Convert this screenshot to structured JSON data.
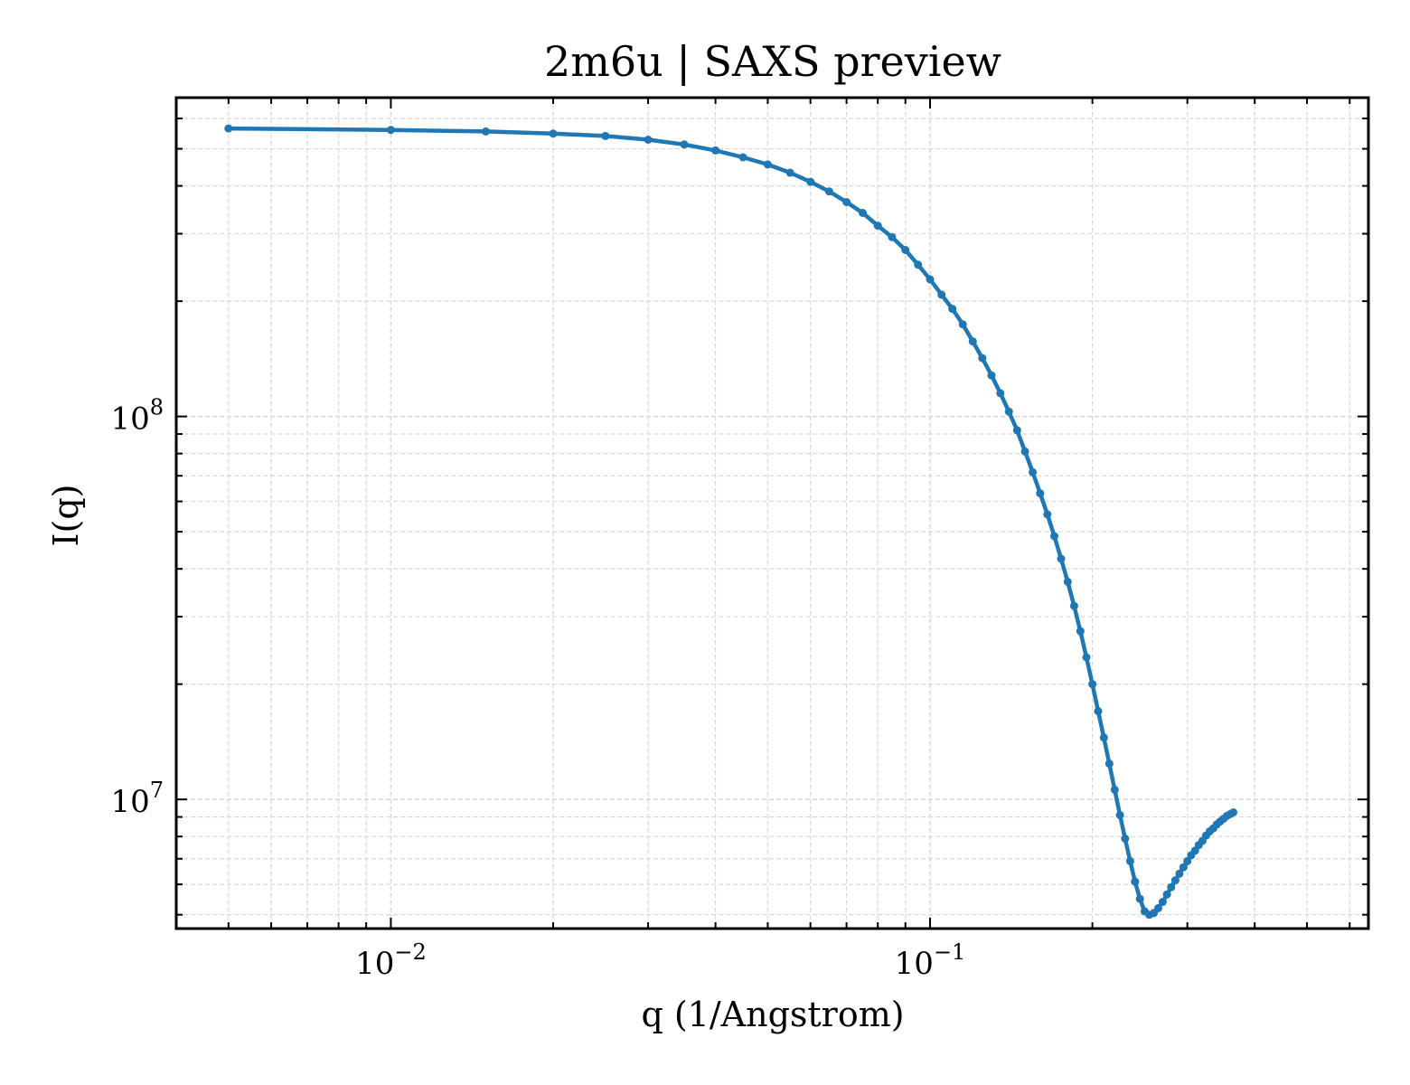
{
  "colors": {
    "line": "#1f77b4",
    "grid": "#d9d9d9",
    "axes": "#000000"
  },
  "chart_data": {
    "type": "line",
    "title": "2m6u | SAXS preview",
    "xlabel": "q (1/Angstrom)",
    "ylabel": "I(q)",
    "xscale": "log",
    "yscale": "log",
    "xlim": [
      0.004,
      0.65
    ],
    "ylim": [
      4600000,
      680000000
    ],
    "grid": true,
    "x_ticks": [
      {
        "base": "10",
        "exp": "−2",
        "value": 0.01
      },
      {
        "base": "10",
        "exp": "−1",
        "value": 0.1
      }
    ],
    "y_ticks": [
      {
        "base": "10",
        "exp": "7",
        "value": 10000000
      },
      {
        "base": "10",
        "exp": "8",
        "value": 100000000
      }
    ],
    "series": [
      {
        "marker": "o",
        "points": [
          [
            0.005,
            565000000
          ],
          [
            0.01,
            560000000
          ],
          [
            0.015,
            555000000
          ],
          [
            0.02,
            548000000
          ],
          [
            0.025,
            540000000
          ],
          [
            0.03,
            528000000
          ],
          [
            0.035,
            513000000
          ],
          [
            0.04,
            495000000
          ],
          [
            0.045,
            475000000
          ],
          [
            0.05,
            455000000
          ],
          [
            0.055,
            433000000
          ],
          [
            0.06,
            410000000
          ],
          [
            0.065,
            387000000
          ],
          [
            0.07,
            363000000
          ],
          [
            0.075,
            340000000
          ],
          [
            0.08,
            315000000
          ],
          [
            0.085,
            294000000
          ],
          [
            0.09,
            272000000
          ],
          [
            0.095,
            249000000
          ],
          [
            0.1,
            228000000
          ],
          [
            0.105,
            208000000
          ],
          [
            0.11,
            191000000
          ],
          [
            0.115,
            174000000
          ],
          [
            0.12,
            157000000
          ],
          [
            0.125,
            142000000
          ],
          [
            0.13,
            128000000
          ],
          [
            0.135,
            115000000
          ],
          [
            0.14,
            103000000
          ],
          [
            0.145,
            92000000
          ],
          [
            0.15,
            81000000
          ],
          [
            0.155,
            71500000
          ],
          [
            0.16,
            63000000
          ],
          [
            0.165,
            55500000
          ],
          [
            0.17,
            48700000
          ],
          [
            0.175,
            42500000
          ],
          [
            0.18,
            37000000
          ],
          [
            0.185,
            32000000
          ],
          [
            0.19,
            27500000
          ],
          [
            0.195,
            23500000
          ],
          [
            0.2,
            20000000
          ],
          [
            0.205,
            17000000
          ],
          [
            0.21,
            14500000
          ],
          [
            0.215,
            12400000
          ],
          [
            0.22,
            10600000
          ],
          [
            0.225,
            9100000
          ],
          [
            0.23,
            7900000
          ],
          [
            0.235,
            6900000
          ],
          [
            0.24,
            6100000
          ],
          [
            0.245,
            5500000
          ],
          [
            0.25,
            5100000
          ],
          [
            0.255,
            5000000
          ],
          [
            0.26,
            5050000
          ],
          [
            0.265,
            5200000
          ],
          [
            0.27,
            5400000
          ],
          [
            0.275,
            5650000
          ],
          [
            0.28,
            5900000
          ],
          [
            0.285,
            6150000
          ],
          [
            0.29,
            6400000
          ],
          [
            0.295,
            6650000
          ],
          [
            0.3,
            6900000
          ],
          [
            0.305,
            7150000
          ],
          [
            0.31,
            7350000
          ],
          [
            0.315,
            7600000
          ],
          [
            0.32,
            7800000
          ],
          [
            0.325,
            8050000
          ],
          [
            0.33,
            8250000
          ],
          [
            0.335,
            8400000
          ],
          [
            0.34,
            8600000
          ],
          [
            0.345,
            8750000
          ],
          [
            0.35,
            8900000
          ],
          [
            0.355,
            9050000
          ],
          [
            0.36,
            9150000
          ],
          [
            0.365,
            9250000
          ]
        ]
      }
    ]
  }
}
